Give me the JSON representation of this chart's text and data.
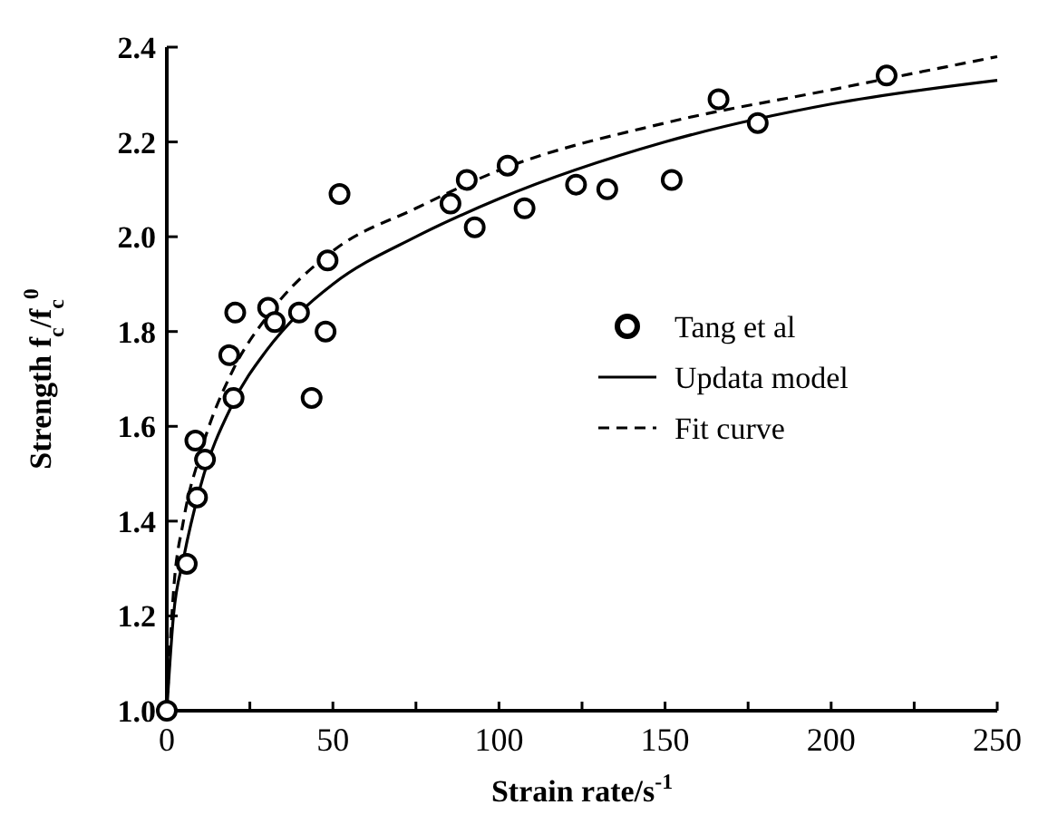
{
  "chart_data": {
    "type": "scatter",
    "xlabel": "Strain rate/s$^{-1}$",
    "ylabel": "Strength f$_{c}$/f$_{c}$$^{0}$",
    "xlim": [
      0,
      250
    ],
    "ylim": [
      1.0,
      2.4
    ],
    "xticks": [
      0,
      {
        "value": 25,
        "label": null
      },
      50,
      {
        "value": 75,
        "label": null
      },
      100,
      {
        "value": 125,
        "label": null
      },
      150,
      {
        "value": 175,
        "label": null
      },
      200,
      {
        "value": 225,
        "label": null
      },
      250
    ],
    "yticks": [
      {
        "value": 1,
        "label": "1.0"
      },
      1.2,
      1.4,
      1.6,
      1.8,
      {
        "value": 2,
        "label": "2.0"
      },
      2.2,
      2.4
    ],
    "legend": "right",
    "grid": false,
    "series": [
      {
        "name": "Tang et al",
        "marker": "circle",
        "color": "#000000",
        "x": [
          0,
          6,
          8.6,
          9.1,
          11.5,
          18.8,
          20.1,
          20.6,
          30.5,
          32.5,
          39.8,
          43.6,
          47.8,
          48.4,
          52,
          85.4,
          90.3,
          92.7,
          102.6,
          107.7,
          123.2,
          132.6,
          152,
          166.1,
          177.9,
          216.7
        ],
        "values": [
          1.0,
          1.31,
          1.57,
          1.45,
          1.53,
          1.75,
          1.66,
          1.84,
          1.85,
          1.82,
          1.84,
          1.66,
          1.8,
          1.95,
          2.09,
          2.07,
          2.12,
          2.02,
          2.15,
          2.06,
          2.11,
          2.1,
          2.12,
          2.29,
          2.24,
          2.34
        ]
      },
      {
        "name": "Updata model",
        "type": "line",
        "line_style": "solid",
        "color": "#000000",
        "x": [
          0,
          2,
          5,
          10,
          20,
          30,
          40,
          50,
          75,
          100,
          150,
          200,
          250
        ],
        "values": [
          1.0,
          1.2,
          1.32,
          1.47,
          1.65,
          1.76,
          1.84,
          1.9,
          2.0,
          2.08,
          2.2,
          2.28,
          2.33
        ]
      },
      {
        "name": "Fit curve",
        "type": "line",
        "line_style": "dashed",
        "color": "#000000",
        "x": [
          0,
          2,
          5,
          10,
          20,
          30,
          50,
          75,
          100,
          150,
          200,
          250
        ],
        "values": [
          1.0,
          1.25,
          1.4,
          1.54,
          1.72,
          1.83,
          1.97,
          2.06,
          2.14,
          2.24,
          2.31,
          2.38
        ]
      }
    ]
  }
}
